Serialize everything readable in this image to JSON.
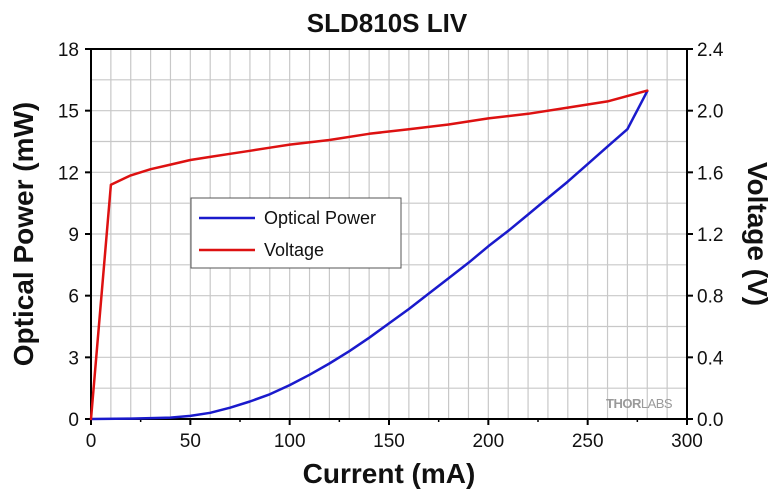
{
  "chart_data": {
    "type": "line",
    "title": "SLD810S LIV",
    "xlabel": "Current (mA)",
    "ylabel_left": "Optical Power (mW)",
    "ylabel_right": "Voltage (V)",
    "xlim": [
      0,
      300
    ],
    "ylim_left": [
      0,
      18
    ],
    "ylim_right": [
      0,
      2.4
    ],
    "x_ticks": [
      0,
      50,
      100,
      150,
      200,
      250,
      300
    ],
    "x_tick_labels": [
      "0",
      "50",
      "100",
      "150",
      "200",
      "250",
      "300"
    ],
    "y_left_ticks": [
      0,
      3,
      6,
      9,
      12,
      15,
      18
    ],
    "y_left_tick_labels": [
      "0",
      "3",
      "6",
      "9",
      "12",
      "15",
      "18"
    ],
    "y_right_ticks": [
      0,
      0.4,
      0.8,
      1.2,
      1.6,
      2.0,
      2.4
    ],
    "y_right_tick_labels": [
      "0.0",
      "0.4",
      "0.8",
      "1.2",
      "1.6",
      "2.0",
      "2.4"
    ],
    "grid": true,
    "legend_position": "center-left",
    "series": [
      {
        "name": "Optical Power",
        "axis": "left",
        "color": "#1a1acc",
        "x": [
          0,
          20,
          40,
          50,
          60,
          70,
          80,
          90,
          100,
          110,
          120,
          130,
          140,
          150,
          160,
          170,
          180,
          190,
          200,
          210,
          220,
          230,
          240,
          250,
          260,
          270,
          280
        ],
        "y": [
          0,
          0.02,
          0.07,
          0.15,
          0.3,
          0.55,
          0.85,
          1.2,
          1.65,
          2.15,
          2.7,
          3.3,
          3.95,
          4.65,
          5.35,
          6.1,
          6.85,
          7.6,
          8.4,
          9.15,
          9.95,
          10.75,
          11.55,
          12.4,
          13.25,
          14.1,
          15.95
        ]
      },
      {
        "name": "Voltage",
        "axis": "right",
        "color": "#dd1111",
        "x": [
          0,
          10,
          20,
          30,
          40,
          50,
          60,
          70,
          80,
          90,
          100,
          120,
          140,
          160,
          180,
          200,
          220,
          240,
          260,
          280
        ],
        "y": [
          0,
          1.52,
          1.58,
          1.62,
          1.65,
          1.68,
          1.7,
          1.72,
          1.74,
          1.76,
          1.78,
          1.81,
          1.85,
          1.88,
          1.91,
          1.95,
          1.98,
          2.02,
          2.06,
          2.13
        ]
      }
    ]
  },
  "watermark": {
    "text_a": "THOR",
    "text_b": "LABS"
  }
}
